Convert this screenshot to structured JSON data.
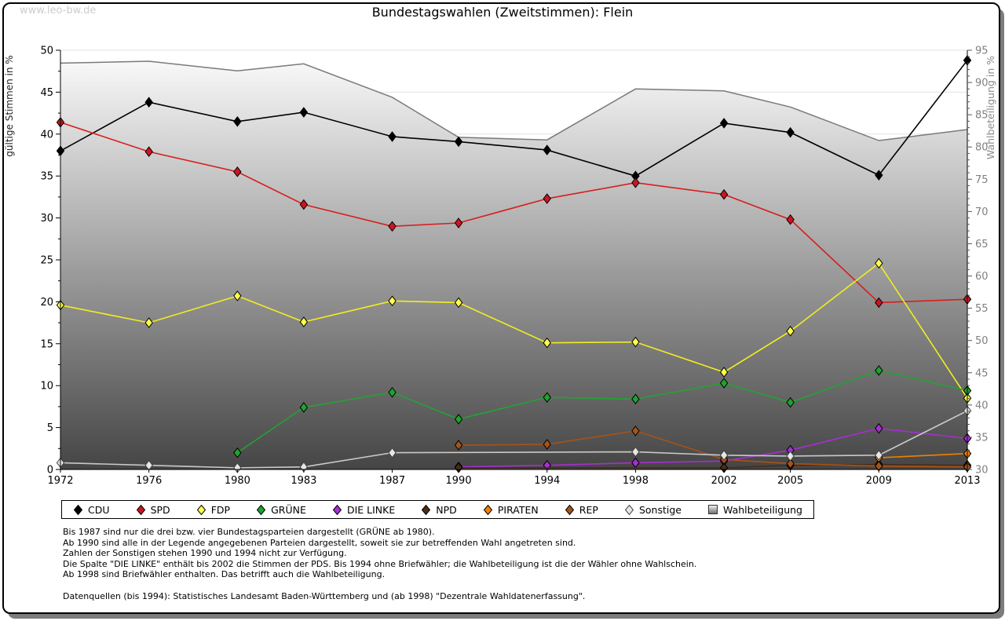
{
  "page": {
    "watermark": "www.leo-bw.de",
    "title": "Bundestagswahlen (Zweitstimmen): Flein"
  },
  "chart_data": {
    "type": "line",
    "title": "Bundestagswahlen (Zweitstimmen): Flein",
    "x": [
      1972,
      1976,
      1980,
      1983,
      1987,
      1990,
      1994,
      1998,
      2002,
      2005,
      2009,
      2013
    ],
    "left_axis": {
      "label": "gültige Stimmen in %",
      "min": 0,
      "max": 50,
      "major_tick": 5,
      "minor_tick": 2.5
    },
    "right_axis": {
      "label": "Wahlbeteiligung in %",
      "min": 30,
      "max": 95,
      "major_tick": 5,
      "minor_tick": 1
    },
    "grid": true,
    "legend_position": "bottom",
    "series": [
      {
        "name": "Wahlbeteiligung",
        "axis": "right",
        "style": "area",
        "color": "#7a7a7a",
        "values": [
          93.0,
          93.3,
          91.8,
          92.9,
          87.7,
          81.5,
          81.1,
          89.0,
          88.7,
          86.2,
          81.0,
          82.7
        ]
      },
      {
        "name": "CDU",
        "axis": "left",
        "style": "line",
        "color": "#000000",
        "marker_fill": "#000000",
        "values": [
          38.0,
          43.8,
          41.5,
          42.6,
          39.7,
          39.1,
          38.1,
          35.0,
          41.3,
          40.2,
          35.1,
          48.8
        ]
      },
      {
        "name": "SPD",
        "axis": "left",
        "style": "line",
        "color": "#d81e1e",
        "marker_fill": "#cc1522",
        "values": [
          41.4,
          37.9,
          35.5,
          31.6,
          29.0,
          29.4,
          32.3,
          34.2,
          32.8,
          29.8,
          19.9,
          20.3
        ]
      },
      {
        "name": "FDP",
        "axis": "left",
        "style": "line",
        "color": "#f0ee20",
        "marker_fill": "#ffff4d",
        "values": [
          19.6,
          17.5,
          20.7,
          17.6,
          20.1,
          19.9,
          15.1,
          15.2,
          11.6,
          16.5,
          24.6,
          8.5
        ]
      },
      {
        "name": "GRÜNE",
        "axis": "left",
        "style": "line",
        "color": "#24a233",
        "marker_fill": "#1fa32c",
        "values": [
          null,
          null,
          2.0,
          7.4,
          9.2,
          6.0,
          8.6,
          8.4,
          10.3,
          8.0,
          11.8,
          9.4
        ]
      },
      {
        "name": "DIE LINKE",
        "axis": "left",
        "style": "line",
        "color": "#a62fd0",
        "marker_fill": "#a62fd0",
        "values": [
          null,
          null,
          null,
          null,
          null,
          0.3,
          0.5,
          0.8,
          1.0,
          2.3,
          4.9,
          3.7
        ]
      },
      {
        "name": "NPD",
        "axis": "left",
        "style": "line",
        "color": "#4a2d15",
        "marker_fill": "#4a2d15",
        "values": [
          null,
          null,
          null,
          null,
          null,
          0.2,
          null,
          null,
          0.2,
          0.5,
          0.6,
          0.5
        ]
      },
      {
        "name": "PIRATEN",
        "axis": "left",
        "style": "line",
        "color": "#ef8200",
        "marker_fill": "#ef8200",
        "values": [
          null,
          null,
          null,
          null,
          null,
          null,
          null,
          null,
          null,
          null,
          1.4,
          1.9
        ]
      },
      {
        "name": "REP",
        "axis": "left",
        "style": "line",
        "color": "#a65319",
        "marker_fill": "#a65319",
        "values": [
          null,
          null,
          null,
          null,
          null,
          2.9,
          3.0,
          4.6,
          1.2,
          0.7,
          0.4,
          0.3
        ]
      },
      {
        "name": "Sonstige",
        "axis": "left",
        "style": "line",
        "color": "#c9c9c9",
        "marker_fill": "#e6e6e6",
        "values": [
          0.8,
          0.5,
          0.2,
          0.3,
          2.0,
          null,
          null,
          2.1,
          1.7,
          1.6,
          1.7,
          7.0
        ]
      }
    ]
  },
  "notes": [
    "Bis 1987 sind nur die drei bzw. vier Bundestagsparteien dargestellt (GRÜNE ab 1980).",
    "Ab 1990 sind alle in der Legende angegebenen Parteien dargestellt, soweit sie zur betreffenden Wahl angetreten sind.",
    "Zahlen der Sonstigen stehen 1990 und 1994 nicht zur Verfügung.",
    "Die Spalte \"DIE LINKE\" enthält bis 2002 die Stimmen der PDS. Bis 1994 ohne Briefwähler; die Wahlbeteiligung ist die der Wähler ohne Wahlschein.",
    "Ab 1998 sind Briefwähler enthalten. Das betrifft auch die Wahlbeteiligung."
  ],
  "source_line": "Datenquellen (bis 1994): Statistisches Landesamt Baden-Württemberg und (ab 1998) \"Dezentrale Wahldatenerfassung\"."
}
